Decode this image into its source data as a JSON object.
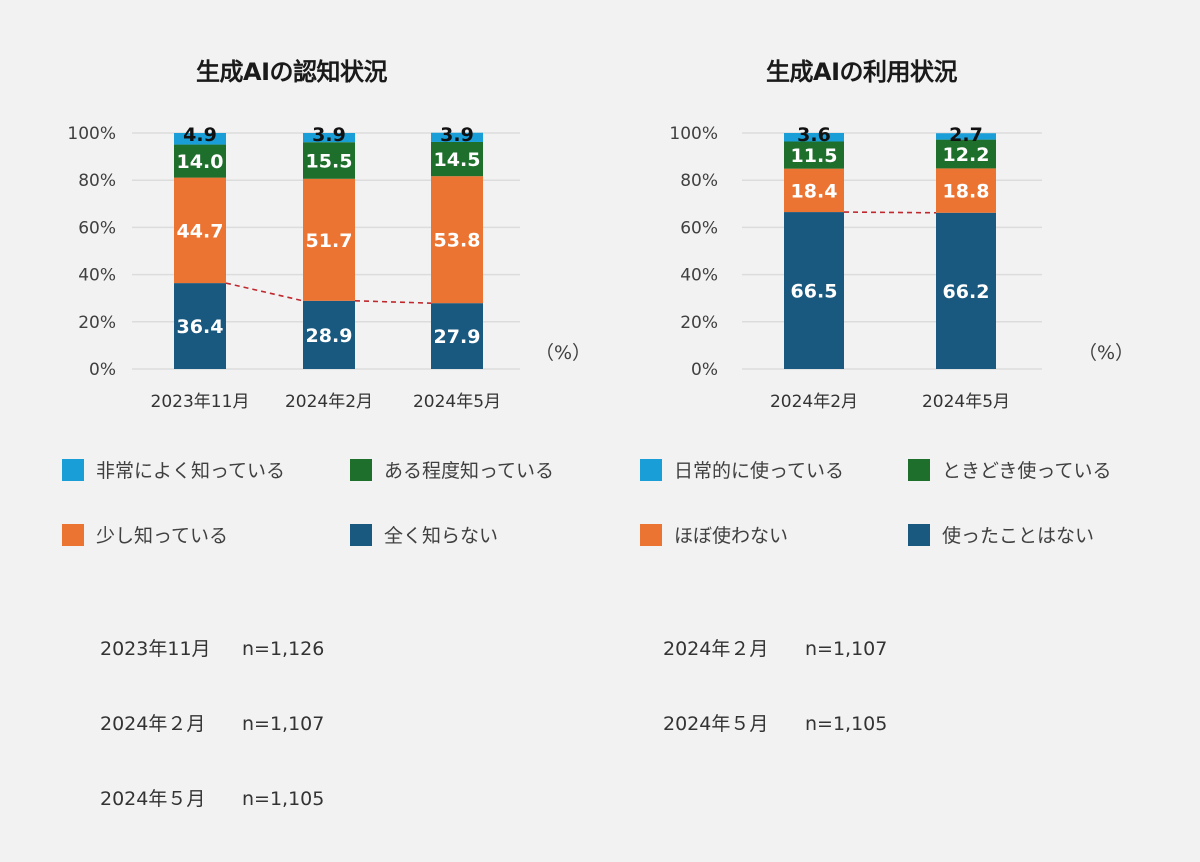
{
  "colors": {
    "very_light_blue": "#1a9ed8",
    "green": "#1e6e2c",
    "orange": "#ec7432",
    "navy": "#19597f",
    "trend_line": "#c0282d",
    "grid": "#dcdcdc",
    "background": "#f2f2f2"
  },
  "chart_data": [
    {
      "type": "bar",
      "stacked": true,
      "title": "生成AIの認知状況",
      "unit_label": "（%）",
      "categories": [
        "2023年11月",
        "2024年2月",
        "2024年5月"
      ],
      "yticks": [
        "0%",
        "20%",
        "40%",
        "60%",
        "80%",
        "100%"
      ],
      "ylim": [
        0,
        100
      ],
      "grid": true,
      "series": [
        {
          "name": "全く知らない",
          "color": "#19597f",
          "label_color": "#ffffff",
          "values": [
            36.4,
            28.9,
            27.9
          ]
        },
        {
          "name": "少し知っている",
          "color": "#ec7432",
          "label_color": "#ffffff",
          "values": [
            44.7,
            51.7,
            53.8
          ]
        },
        {
          "name": "ある程度知っている",
          "color": "#1e6e2c",
          "label_color": "#ffffff",
          "values": [
            14.0,
            15.5,
            14.5
          ]
        },
        {
          "name": "非常によく知っている",
          "color": "#1a9ed8",
          "label_color": "#111111",
          "values": [
            4.9,
            3.9,
            3.9
          ]
        }
      ],
      "trend_line": {
        "series": "全く知らない",
        "style": "dashed"
      },
      "legend": [
        {
          "name": "非常によく知っている",
          "color": "#1a9ed8"
        },
        {
          "name": "ある程度知っている",
          "color": "#1e6e2c"
        },
        {
          "name": "少し知っている",
          "color": "#ec7432"
        },
        {
          "name": "全く知らない",
          "color": "#19597f"
        }
      ],
      "samples": [
        {
          "date": "2023年11月",
          "n": "n=1,126"
        },
        {
          "date": "2024年２月",
          "n": "n=1,107"
        },
        {
          "date": "2024年５月",
          "n": "n=1,105"
        }
      ]
    },
    {
      "type": "bar",
      "stacked": true,
      "title": "生成AIの利用状況",
      "unit_label": "（%）",
      "categories": [
        "2024年2月",
        "2024年5月"
      ],
      "yticks": [
        "0%",
        "20%",
        "40%",
        "60%",
        "80%",
        "100%"
      ],
      "ylim": [
        0,
        100
      ],
      "grid": true,
      "series": [
        {
          "name": "使ったことはない",
          "color": "#19597f",
          "label_color": "#ffffff",
          "values": [
            66.5,
            66.2
          ]
        },
        {
          "name": "ほぼ使わない",
          "color": "#ec7432",
          "label_color": "#ffffff",
          "values": [
            18.4,
            18.8
          ]
        },
        {
          "name": "ときどき使っている",
          "color": "#1e6e2c",
          "label_color": "#ffffff",
          "values": [
            11.5,
            12.2
          ]
        },
        {
          "name": "日常的に使っている",
          "color": "#1a9ed8",
          "label_color": "#111111",
          "values": [
            3.6,
            2.7
          ]
        }
      ],
      "trend_line": {
        "series": "使ったことはない",
        "style": "dashed"
      },
      "legend": [
        {
          "name": "日常的に使っている",
          "color": "#1a9ed8"
        },
        {
          "name": "ときどき使っている",
          "color": "#1e6e2c"
        },
        {
          "name": "ほぼ使わない",
          "color": "#ec7432"
        },
        {
          "name": "使ったことはない",
          "color": "#19597f"
        }
      ],
      "samples": [
        {
          "date": "2024年２月",
          "n": "n=1,107"
        },
        {
          "date": "2024年５月",
          "n": "n=1,105"
        }
      ]
    }
  ]
}
